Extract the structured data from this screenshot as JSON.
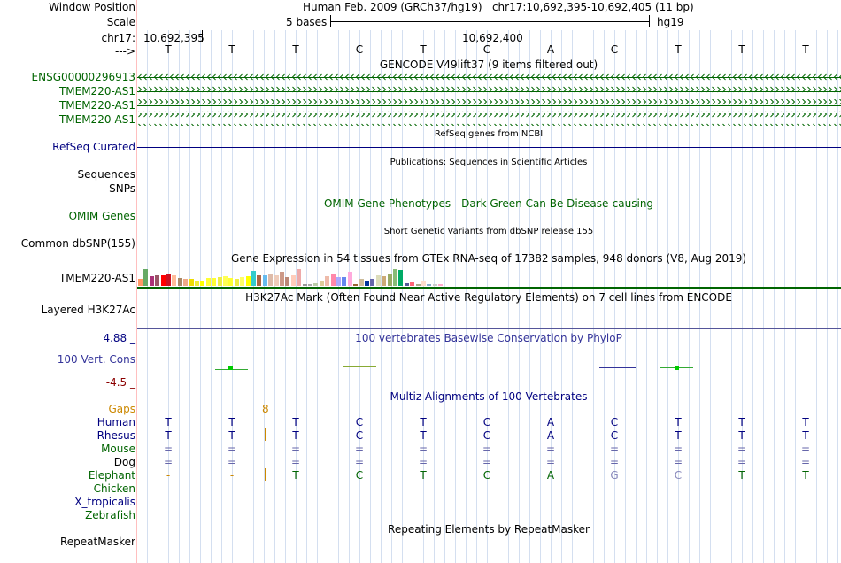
{
  "header": {
    "window_position_label": "Window Position",
    "window_position_value": "Human Feb. 2009 (GRCh37/hg19)   chr17:10,692,395-10,692,405 (11 bp)",
    "scale_label": "Scale",
    "scale_value": "5 bases",
    "scale_db": "hg19",
    "chrom_label": "chr17:",
    "coord_1": "10,692,395",
    "coord_2": "10,692,400",
    "strand_label": "--->",
    "bases": [
      "T",
      "T",
      "T",
      "C",
      "T",
      "C",
      "A",
      "C",
      "T",
      "T",
      "T"
    ]
  },
  "tracks": {
    "gencode": {
      "title": "GENCODE V49lift37 (9 items filtered out)",
      "items": [
        {
          "label": "ENSG00000296913",
          "direction": "reverse"
        },
        {
          "label": "TMEM220-AS1",
          "direction": "forward"
        },
        {
          "label": "TMEM220-AS1",
          "direction": "forward"
        },
        {
          "label": "TMEM220-AS1",
          "direction": "forward"
        }
      ]
    },
    "refseq": {
      "label": "RefSeq Curated",
      "title": "RefSeq genes from NCBI"
    },
    "publications": {
      "label": "Sequences",
      "title": "Publications: Sequences in Scientific Articles"
    },
    "snps": {
      "label": "SNPs"
    },
    "omim": {
      "label": "OMIM Genes",
      "title": "OMIM Gene Phenotypes - Dark Green Can Be Disease-causing"
    },
    "dbsnp": {
      "label": "Common dbSNP(155)",
      "title": "Short Genetic Variants from dbSNP release 155"
    },
    "gtex": {
      "label": "TMEM220-AS1",
      "title": "Gene Expression in 54 tissues from GTEx RNA-seq of 17382 samples, 948 donors (V8, Aug 2019)",
      "tissue_colors": [
        "#ff9966",
        "#66aa66",
        "#aa3377",
        "#995566",
        "#ff0000",
        "#cc1122",
        "#ffbb99",
        "#aa8866",
        "#eeaa88",
        "#eedd00",
        "#eeee33",
        "#ffff00",
        "#ffff33",
        "#ffff33",
        "#eeee44",
        "#ffff55",
        "#ffff33",
        "#eeee44",
        "#ffff66",
        "#ffff00",
        "#33cccc",
        "#aa6644",
        "#66bbee",
        "#ddbbaa",
        "#eeccbb",
        "#cc9988",
        "#bb8877",
        "#ffccbb",
        "#eeaaaa",
        "#999999",
        "#aaaaaa",
        "#bbccaa",
        "#ddcc99",
        "#eebbaa",
        "#ff88aa",
        "#aaaaff",
        "#6688ee",
        "#ffaadd",
        "#996633",
        "#ccbb99",
        "#003399",
        "#6666aa",
        "#ddddbb",
        "#ccaa77",
        "#99aa66",
        "#88bb77",
        "#00aa66",
        "#555599",
        "#ff6677",
        "#aaaa88",
        "#ffddcc",
        "#88aacc",
        "#cccccc",
        "#ffaacc"
      ],
      "tissue_values": [
        0.42,
        0.95,
        0.55,
        0.6,
        0.6,
        0.7,
        0.62,
        0.45,
        0.4,
        0.38,
        0.28,
        0.3,
        0.45,
        0.45,
        0.5,
        0.55,
        0.45,
        0.42,
        0.5,
        0.55,
        0.85,
        0.62,
        0.62,
        0.7,
        0.62,
        0.8,
        0.48,
        0.6,
        0.95,
        0.1,
        0.08,
        0.15,
        0.3,
        0.55,
        0.72,
        0.5,
        0.5,
        0.78,
        0.12,
        0.42,
        0.3,
        0.42,
        0.6,
        0.55,
        0.7,
        0.95,
        0.9,
        0.15,
        0.2,
        0.1,
        0.3,
        0.1,
        0.08,
        0.1
      ]
    },
    "h3k27ac": {
      "label": "Layered H3K27Ac",
      "title": "H3K27Ac Mark (Often Found Near Active Regulatory Elements) on 7 cell lines from ENCODE"
    },
    "conservation": {
      "label": "100 Vert. Cons",
      "ymax": "4.88 _",
      "ymin": "-4.5 _",
      "title": "100 vertebrates Basewise Conservation by PhyloP"
    },
    "multiz": {
      "title": "Multiz Alignments of 100 Vertebrates",
      "gaps_label": "Gaps",
      "gap_count": "8",
      "species": [
        {
          "name": "Human",
          "color": "#000080",
          "bases": [
            "T",
            "T",
            "T",
            "C",
            "T",
            "C",
            "A",
            "C",
            "T",
            "T",
            "T"
          ]
        },
        {
          "name": "Rhesus",
          "color": "#000080",
          "bases": [
            "T",
            "T",
            "T",
            "C",
            "T",
            "C",
            "A",
            "C",
            "T",
            "T",
            "T"
          ]
        },
        {
          "name": "Mouse",
          "color": "#006400",
          "bases": [
            "=",
            "=",
            "=",
            "=",
            "=",
            "=",
            "=",
            "=",
            "=",
            "=",
            "="
          ]
        },
        {
          "name": "Dog",
          "color": "#000000",
          "bases": [
            "=",
            "=",
            "=",
            "=",
            "=",
            "=",
            "=",
            "=",
            "=",
            "=",
            "="
          ]
        },
        {
          "name": "Elephant",
          "color": "#006400",
          "bases": [
            "-",
            "-",
            "T",
            "C",
            "T",
            "C",
            "A",
            "G",
            "C",
            "T",
            "T"
          ]
        },
        {
          "name": "Chicken",
          "color": "#006400",
          "bases": []
        },
        {
          "name": "X_tropicalis",
          "color": "#000080",
          "bases": []
        },
        {
          "name": "Zebrafish",
          "color": "#006400",
          "bases": []
        }
      ]
    },
    "repeatmasker": {
      "label": "RepeatMasker",
      "title": "Repeating Elements by RepeatMasker"
    }
  },
  "colors": {
    "track_green": "#006400",
    "track_navy": "#000080",
    "gaps_orange": "#cc8800",
    "cons_axis_red": "#8b0000",
    "divider_pink": "#ffbfbf",
    "guide_blue": "#d4dff0"
  }
}
